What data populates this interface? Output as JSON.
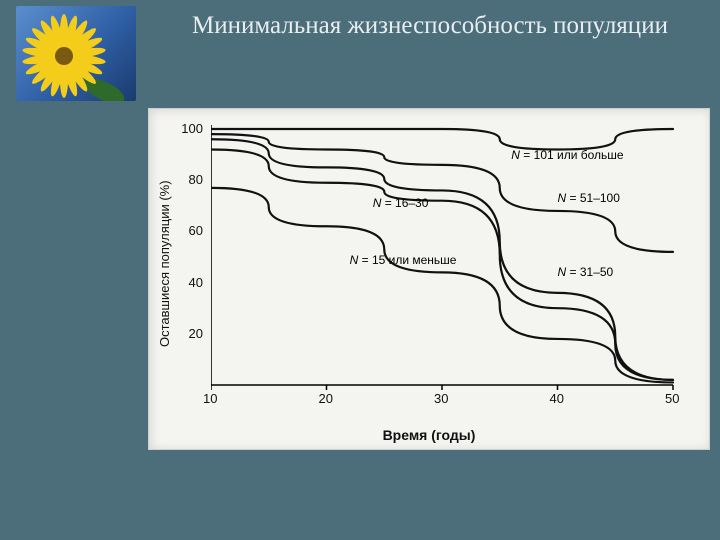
{
  "slide": {
    "title": "Минимальная жизнеспособность популяции",
    "background_color": "#4b6e7a",
    "title_color": "#e8edf0",
    "title_fontsize": 25
  },
  "thumbnail": {
    "bg_gradient": [
      "#5a8fce",
      "#2f5fa5",
      "#1a3b6e"
    ],
    "flower_petal_color": "#f4cc1a",
    "flower_center_color": "#7a5a10",
    "leaf_color": "#2e6b2a"
  },
  "chart": {
    "type": "line",
    "panel_bg": "#f4f4f1",
    "axis_color": "#000000",
    "line_color": "#111111",
    "line_width": 2.2,
    "xlim": [
      10,
      50
    ],
    "ylim": [
      0,
      100
    ],
    "xticks": [
      10,
      20,
      30,
      40,
      50
    ],
    "yticks": [
      20,
      40,
      60,
      80,
      100
    ],
    "xlabel": "Время (годы)",
    "ylabel": "Оставшиеся популяции (%)",
    "tick_fontsize": 13,
    "axis_label_fontsize": 14,
    "series": [
      {
        "name": "N = 101 или больше",
        "label_html": "<i>N</i> = 101 или больше",
        "x": [
          10,
          20,
          30,
          40,
          50
        ],
        "y": [
          100,
          100,
          100,
          92,
          100
        ],
        "label_pos": {
          "x": 36,
          "y": 90
        }
      },
      {
        "name": "N = 51–100",
        "label_html": "<i>N</i> = 51–100",
        "x": [
          10,
          20,
          30,
          40,
          50
        ],
        "y": [
          98,
          92,
          86,
          68,
          52
        ],
        "label_pos": {
          "x": 40,
          "y": 73
        }
      },
      {
        "name": "N = 31–50",
        "label_html": "<i>N</i> = 31–50",
        "x": [
          10,
          20,
          30,
          40,
          50
        ],
        "y": [
          96,
          85,
          76,
          36,
          2
        ],
        "label_pos": {
          "x": 40,
          "y": 44
        }
      },
      {
        "name": "N = 16–30",
        "label_html": "<i>N</i> = 16–30",
        "x": [
          10,
          20,
          30,
          40,
          50
        ],
        "y": [
          92,
          79,
          72,
          30,
          2
        ],
        "label_pos": {
          "x": 24,
          "y": 71
        }
      },
      {
        "name": "N = 15 или меньше",
        "label_html": "<i>N</i> = 15  или меньше",
        "x": [
          10,
          20,
          30,
          40,
          50
        ],
        "y": [
          77,
          62,
          44,
          18,
          1
        ],
        "label_pos": {
          "x": 22,
          "y": 49
        }
      }
    ]
  }
}
